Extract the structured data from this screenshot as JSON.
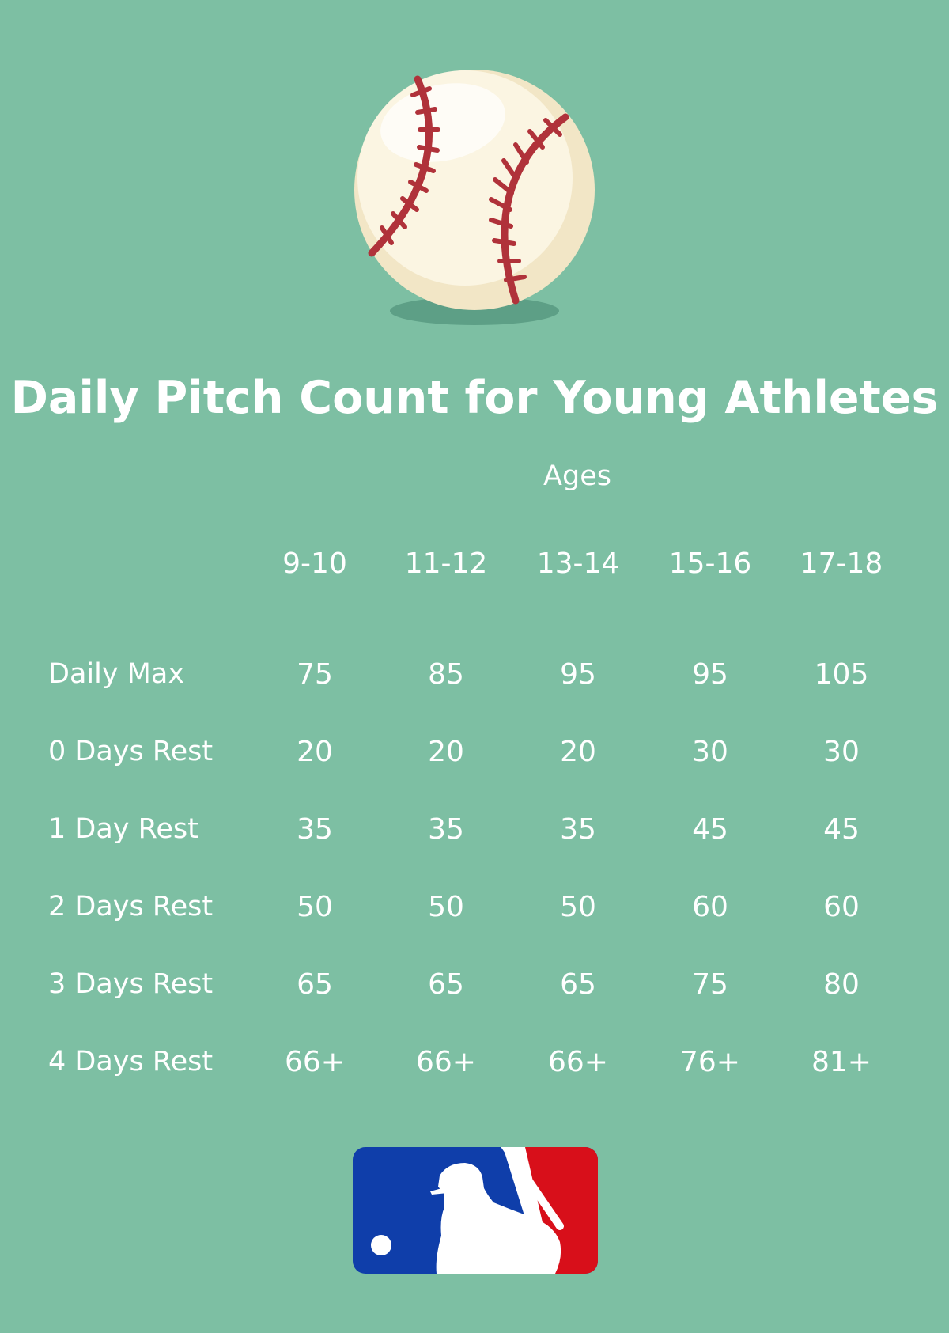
{
  "header": {
    "title": "Daily Pitch Count for Young Athletes"
  },
  "table": {
    "group_label": "Ages",
    "columns": [
      "9-10",
      "11-12",
      "13-14",
      "15-16",
      "17-18"
    ],
    "rows": [
      {
        "label": "Daily Max",
        "values": [
          "75",
          "85",
          "95",
          "95",
          "105"
        ]
      },
      {
        "label": "0 Days Rest",
        "values": [
          "20",
          "20",
          "20",
          "30",
          "30"
        ]
      },
      {
        "label": "1 Day Rest",
        "values": [
          "35",
          "35",
          "35",
          "45",
          "45"
        ]
      },
      {
        "label": "2 Days Rest",
        "values": [
          "50",
          "50",
          "50",
          "60",
          "60"
        ]
      },
      {
        "label": "3 Days Rest",
        "values": [
          "65",
          "65",
          "65",
          "75",
          "80"
        ]
      },
      {
        "label": "4 Days Rest",
        "values": [
          "66+",
          "66+",
          "66+",
          "76+",
          "81+"
        ]
      }
    ]
  },
  "graphics": {
    "baseball": "baseball-icon",
    "logo": "mlb-batter-logo",
    "colors": {
      "background": "#7dbfa3",
      "stitches": "#b0323a",
      "ball": "#fbf5e2",
      "logo_blue": "#0f3eaa",
      "logo_red": "#d80f1a"
    }
  }
}
